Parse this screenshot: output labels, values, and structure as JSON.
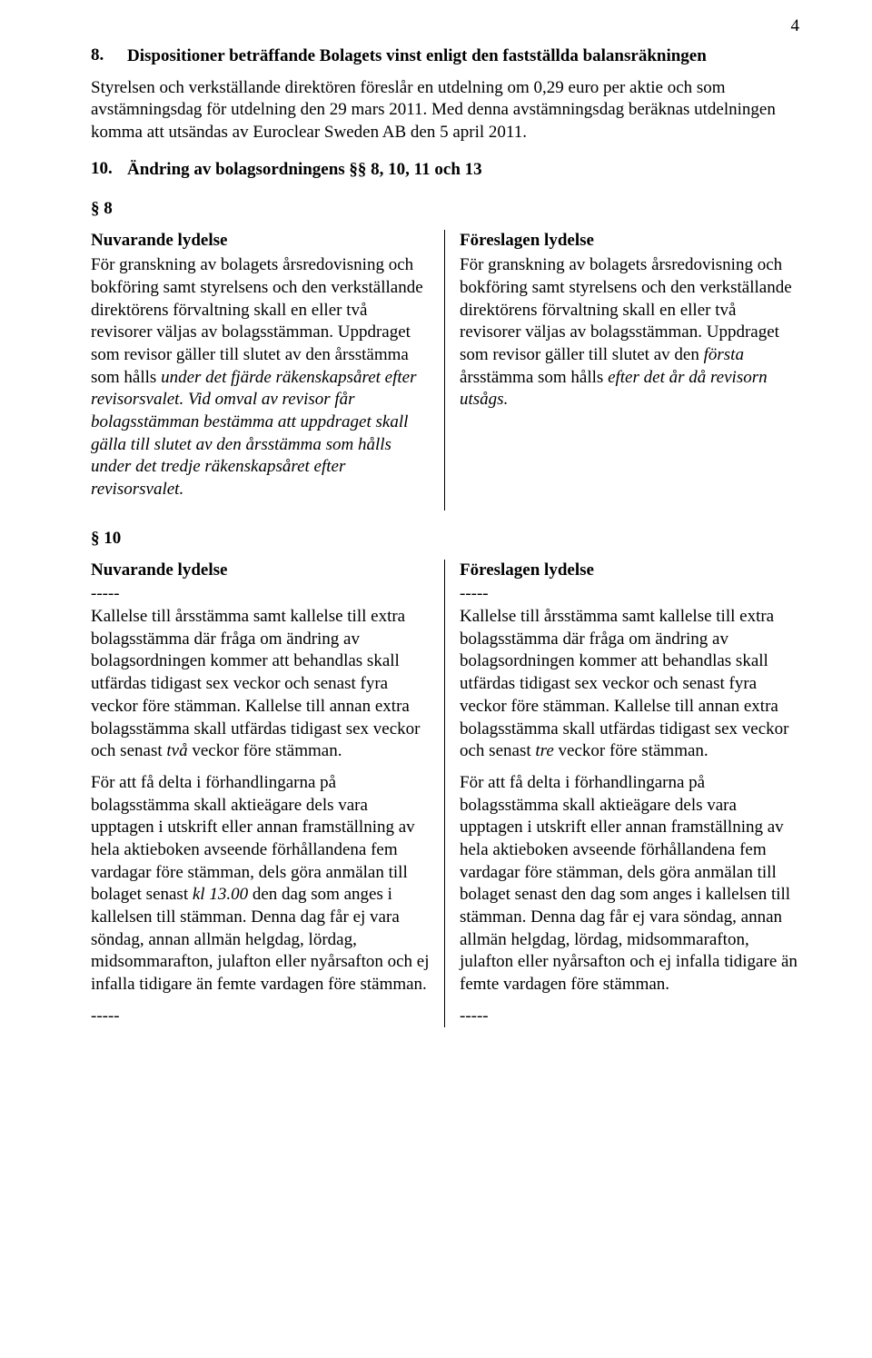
{
  "page_number": "4",
  "item8": {
    "num": "8.",
    "title": "Dispositioner beträffande Bolagets vinst enligt den fastställda balansräkningen",
    "para": "Styrelsen och verkställande direktören föreslår en utdelning om 0,29 euro per aktie och som avstämningsdag för utdelning den 29 mars 2011. Med denna avstämningsdag beräknas utdelningen komma att utsändas av Euroclear Sweden AB den 5 april 2011."
  },
  "item10": {
    "num": "10.",
    "title": "Ändring av bolagsordningens §§ 8, 10, 11 och 13"
  },
  "sec8": {
    "label": "§ 8",
    "left_title": "Nuvarande lydelse",
    "right_title": "Föreslagen lydelse",
    "left_pre": "För granskning av bolagets årsredovisning och bokföring samt styrelsens och den verkställande direktörens förvaltning skall en eller två revisorer väljas av bolagsstämman. Uppdraget som revisor gäller till slutet av den årsstämma som hålls ",
    "left_it1": "under det fjärde räkenskapsåret efter revisorsvalet. Vid omval av revisor får bolagsstämman bestämma att uppdraget skall gälla till slutet av den årsstämma som hålls under det tredje räkenskapsåret efter revisorsvalet.",
    "right_pre": "För granskning av bolagets årsredovisning och bokföring samt styrelsens och den verkställande direktörens förvaltning skall en eller två revisorer väljas av bolagsstämman. Uppdraget som revisor gäller till slutet av den ",
    "right_it1": "första",
    "right_mid": " årsstämma som hålls ",
    "right_it2": "efter det år då revisorn utsågs."
  },
  "sec10": {
    "label": "§ 10",
    "left_title": "Nuvarande lydelse",
    "right_title": "Föreslagen lydelse",
    "dashes": "-----",
    "left_p1_pre": "Kallelse till årsstämma samt kallelse till extra bolagsstämma där fråga om ändring av bolagsordningen kommer att behandlas skall utfärdas tidigast sex veckor och senast fyra veckor före stämman. Kallelse till annan extra bolagsstämma skall utfärdas tidigast sex veckor och senast ",
    "left_p1_it": "två",
    "left_p1_post": " veckor före stämman.",
    "right_p1_pre": "Kallelse till årsstämma samt kallelse till extra bolagsstämma där fråga om ändring av bolagsordningen kommer att behandlas skall utfärdas tidigast sex veckor och senast fyra veckor före stämman. Kallelse till annan extra bolagsstämma skall utfärdas tidigast sex veckor och senast ",
    "right_p1_it": "tre",
    "right_p1_post": " veckor före stämman.",
    "left_p2_pre": "För att få delta i förhandlingarna på bolagsstämma skall aktieägare dels vara upptagen i utskrift eller annan framställning av hela aktieboken avseende förhållandena fem vardagar före stämman, dels göra anmälan till bolaget senast ",
    "left_p2_it": "kl 13.00",
    "left_p2_post": " den dag som anges i kallelsen till stämman. Denna dag får ej vara söndag, annan allmän helgdag, lördag, midsommarafton, julafton eller nyårsafton och ej infalla tidigare än femte vardagen före stämman.",
    "right_p2": "För att få delta i förhandlingarna på bolagsstämma skall aktieägare dels vara upptagen i utskrift eller annan framställning av hela aktieboken avseende förhållandena fem vardagar före stämman, dels göra anmälan till bolaget senast den dag som anges i kallelsen till stämman. Denna dag får ej vara söndag, annan allmän helgdag, lördag, midsommarafton, julafton eller nyårsafton och ej infalla tidigare än femte vardagen före stämman."
  }
}
